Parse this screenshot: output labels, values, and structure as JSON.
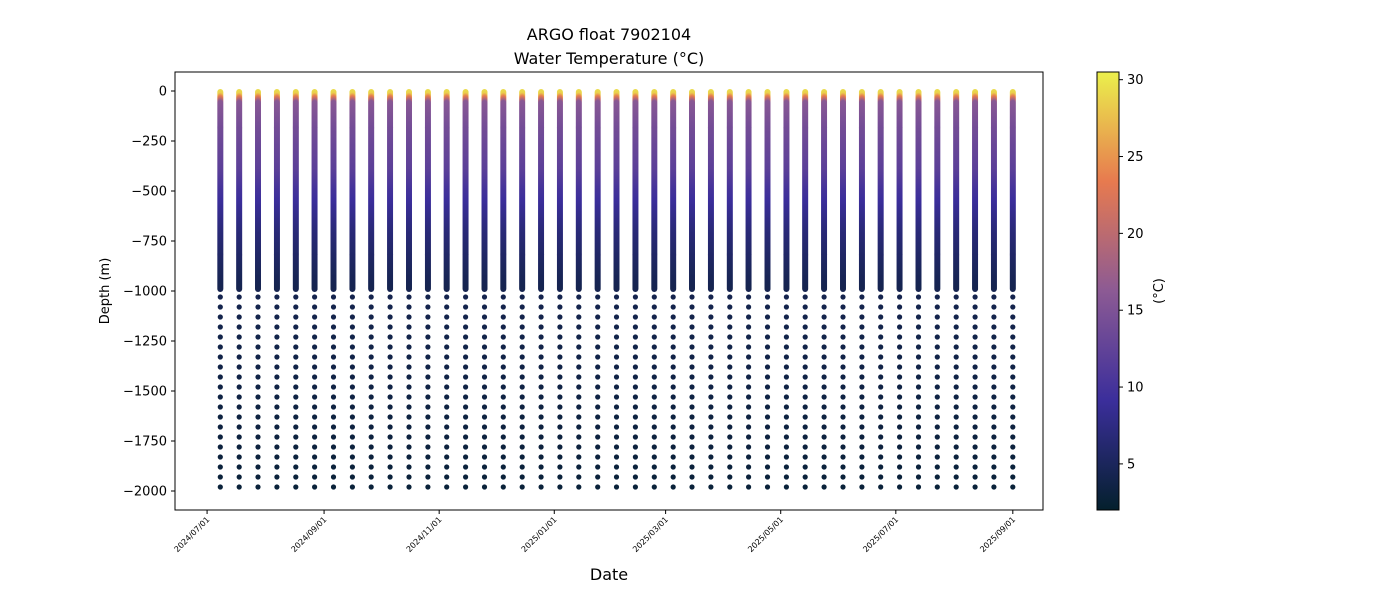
{
  "chart_data": {
    "type": "scatter",
    "title": "ARGO float 7902104",
    "subtitle": "Water Temperature (°C)",
    "xlabel": "Date",
    "ylabel": "Depth (m)",
    "colorbar_label": "(°C)",
    "colormap": "thermal",
    "xlim": [
      "2024-06-14",
      "2025-09-17"
    ],
    "ylim": [
      -2095,
      95
    ],
    "clim": [
      2.0,
      30.5
    ],
    "x_ticks": [
      "2024/07/01",
      "2024/09/01",
      "2024/11/01",
      "2025/01/01",
      "2025/03/01",
      "2025/05/01",
      "2025/07/01",
      "2025/09/01"
    ],
    "y_ticks": [
      "0",
      "−250",
      "−500",
      "−750",
      "−1000",
      "−1250",
      "−1500",
      "−1750",
      "−2000"
    ],
    "colorbar_ticks": [
      "5",
      "10",
      "15",
      "20",
      "25",
      "30"
    ],
    "profile_dates": [
      "2024-07-08",
      "2024-07-18",
      "2024-07-28",
      "2024-08-07",
      "2024-08-17",
      "2024-08-27",
      "2024-09-06",
      "2024-09-16",
      "2024-09-26",
      "2024-10-06",
      "2024-10-16",
      "2024-10-26",
      "2024-11-05",
      "2024-11-15",
      "2024-11-25",
      "2024-12-05",
      "2024-12-15",
      "2024-12-25",
      "2025-01-04",
      "2025-01-14",
      "2025-01-24",
      "2025-02-03",
      "2025-02-13",
      "2025-02-23",
      "2025-03-05",
      "2025-03-15",
      "2025-03-25",
      "2025-04-04",
      "2025-04-14",
      "2025-04-24",
      "2025-05-04",
      "2025-05-14",
      "2025-05-24",
      "2025-06-03",
      "2025-06-13",
      "2025-06-23",
      "2025-07-03",
      "2025-07-13",
      "2025-07-23",
      "2025-08-02",
      "2025-08-12",
      "2025-08-22",
      "2025-09-01"
    ],
    "dense_depth_range": [
      -5,
      -990
    ],
    "deep_sample_depths": [
      -1030,
      -1080,
      -1130,
      -1180,
      -1230,
      -1280,
      -1330,
      -1380,
      -1430,
      -1480,
      -1530,
      -1580,
      -1630,
      -1680,
      -1730,
      -1780,
      -1830,
      -1880,
      -1930,
      -1980
    ],
    "temperature_profile": [
      {
        "depth": 0,
        "temp": 29.5
      },
      {
        "depth": -20,
        "temp": 28.5
      },
      {
        "depth": -60,
        "temp": 16
      },
      {
        "depth": -200,
        "temp": 14
      },
      {
        "depth": -400,
        "temp": 12
      },
      {
        "depth": -500,
        "temp": 10
      },
      {
        "depth": -700,
        "temp": 7
      },
      {
        "depth": -900,
        "temp": 5
      },
      {
        "depth": -1000,
        "temp": 4.2
      },
      {
        "depth": -2000,
        "temp": 2.8
      }
    ],
    "grid": false
  }
}
